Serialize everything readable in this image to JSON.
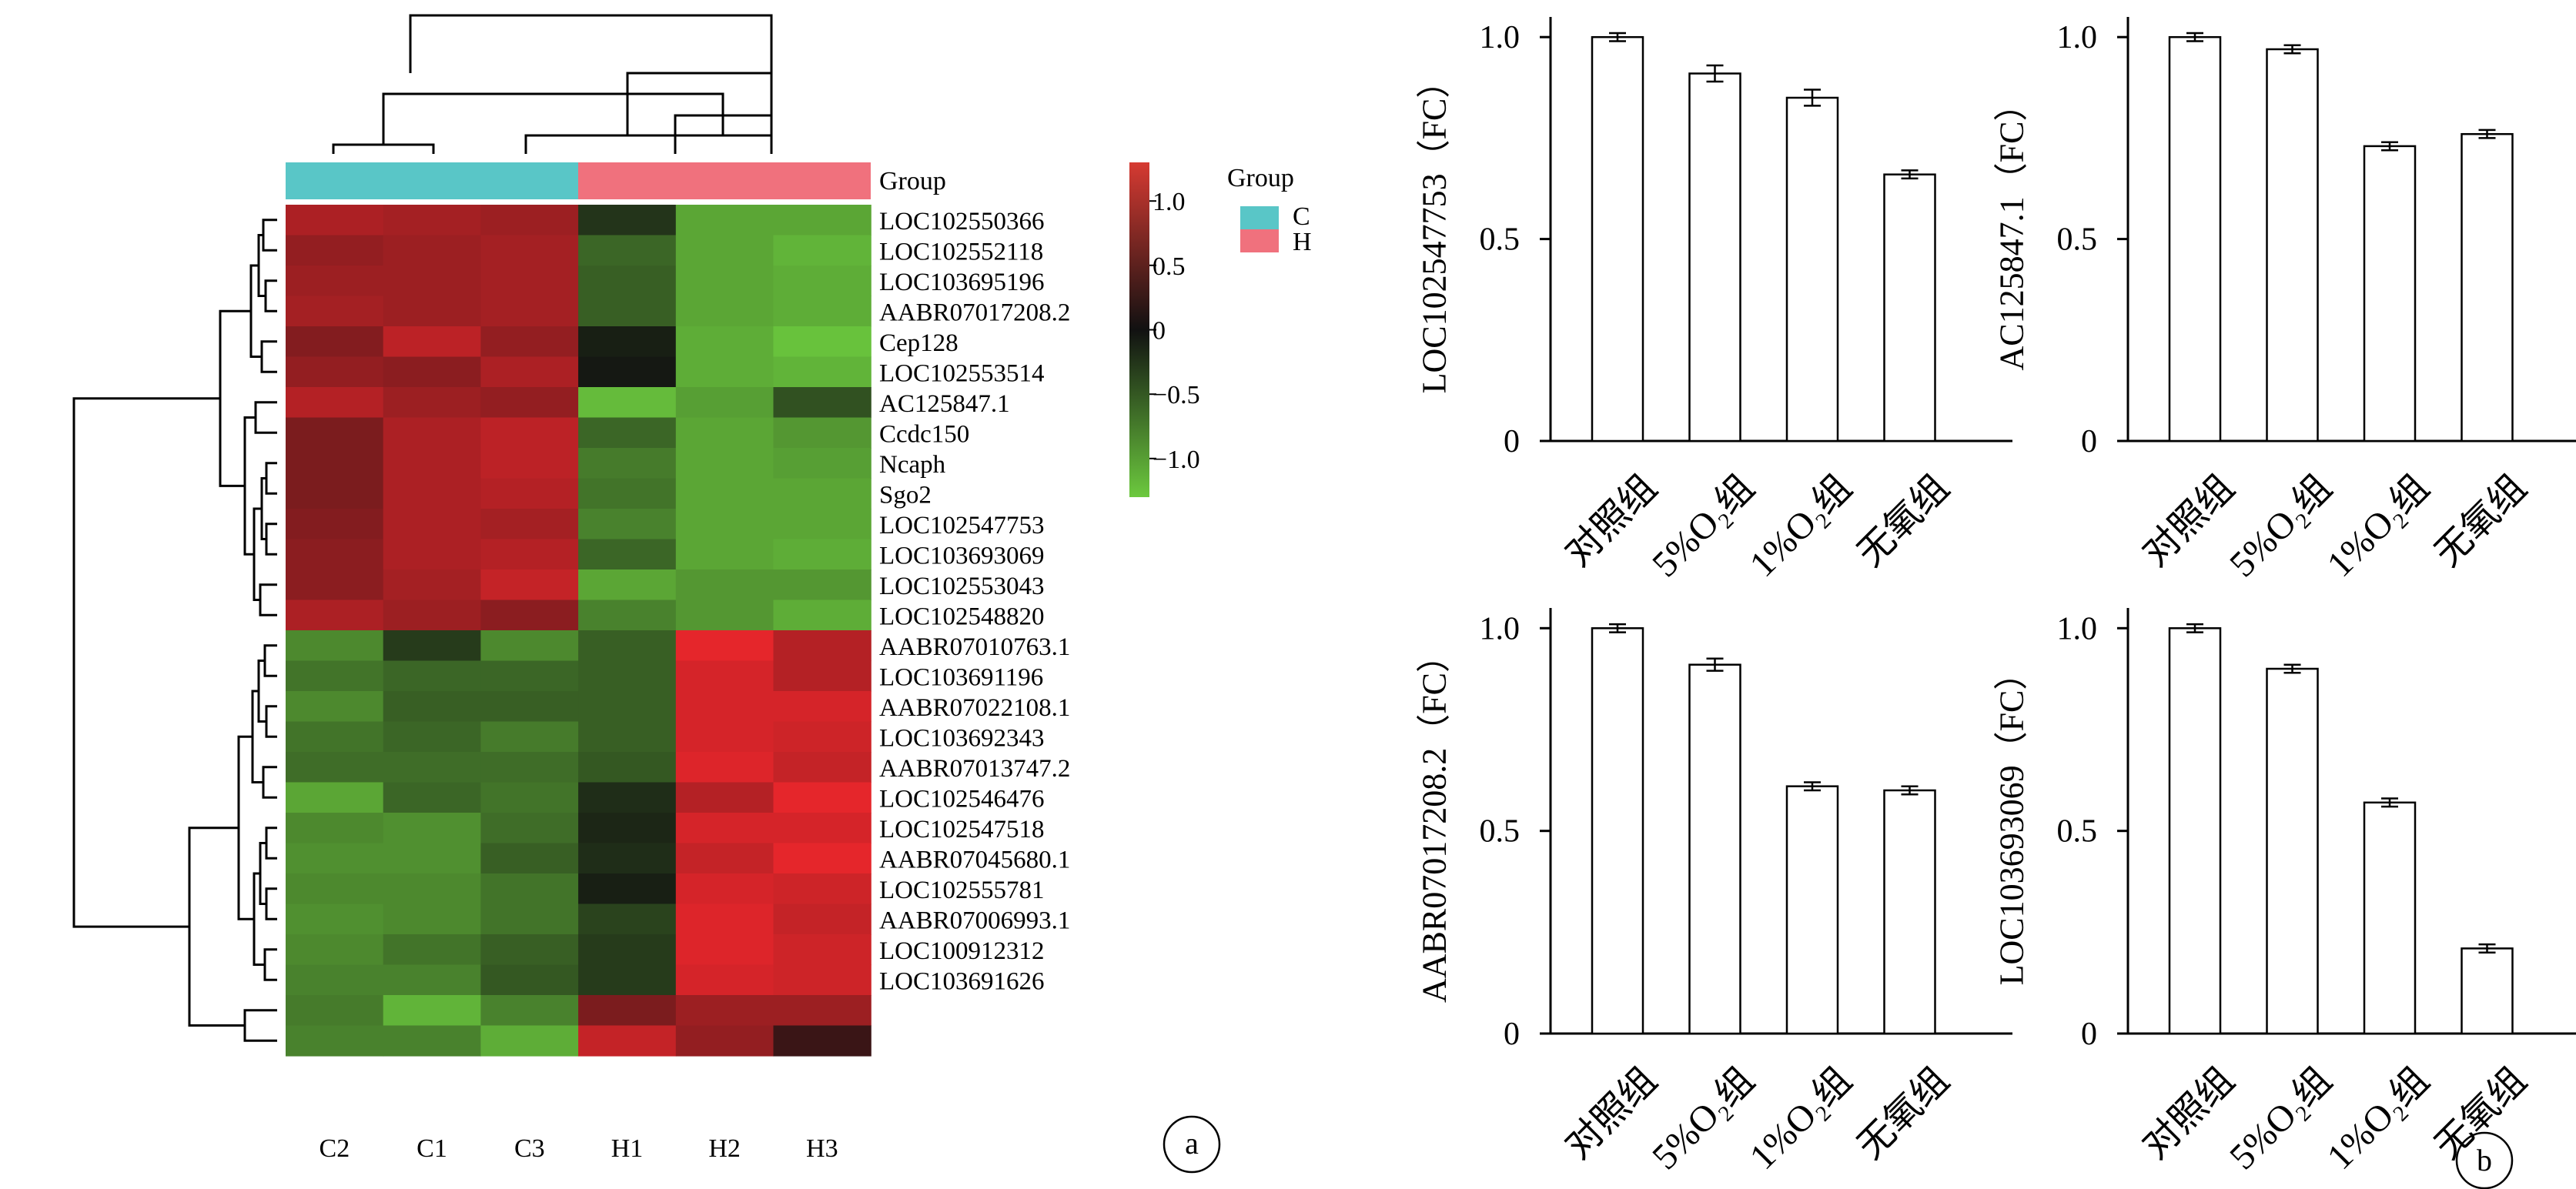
{
  "panel_labels": {
    "a": "a",
    "b": "b"
  },
  "colors": {
    "group_C": "#59C6C7",
    "group_H": "#F0717D",
    "low": "#6CC93E",
    "mid": "#111111",
    "high": "#E5262B",
    "bar_fill": "#ffffff",
    "ink": "#000000"
  },
  "chart_data": [
    {
      "type": "heatmap",
      "columns": [
        "C2",
        "C1",
        "C3",
        "H1",
        "H2",
        "H3"
      ],
      "rows": [
        "LOC102550366",
        "LOC102552118",
        "LOC103695196",
        "AABR07017208.2",
        "Cep128",
        "LOC102553514",
        "AC125847.1",
        "Ccdc150",
        "Ncaph",
        "Sgo2",
        "LOC102547753",
        "LOC103693069",
        "LOC102553043",
        "LOC102548820",
        "AABR07010763.1",
        "LOC103691196",
        "AABR07022108.1",
        "LOC103692343",
        "AABR07013747.2",
        "LOC102546476",
        "LOC102547518",
        "AABR07045680.1",
        "LOC102555781",
        "AABR07006993.1",
        "LOC100912312",
        "LOC103691626",
        "",
        ""
      ],
      "values": [
        [
          0.95,
          0.9,
          0.85,
          -0.25,
          -1.05,
          -1.05
        ],
        [
          0.8,
          0.85,
          0.9,
          -0.6,
          -1.05,
          -1.15
        ],
        [
          0.85,
          0.85,
          0.9,
          -0.55,
          -1.05,
          -1.1
        ],
        [
          0.9,
          0.85,
          0.9,
          -0.55,
          -1.05,
          -1.1
        ],
        [
          0.7,
          1.05,
          0.8,
          -0.1,
          -1.1,
          -1.25
        ],
        [
          0.8,
          0.75,
          0.95,
          -0.05,
          -1.1,
          -1.15
        ],
        [
          1.0,
          0.85,
          0.8,
          -1.2,
          -1.0,
          -0.45
        ],
        [
          0.65,
          0.95,
          1.05,
          -0.6,
          -1.05,
          -0.95
        ],
        [
          0.65,
          0.95,
          1.05,
          -0.75,
          -1.05,
          -1.0
        ],
        [
          0.65,
          0.95,
          1.0,
          -0.7,
          -1.05,
          -1.05
        ],
        [
          0.7,
          0.95,
          0.9,
          -0.8,
          -1.05,
          -1.05
        ],
        [
          0.75,
          0.95,
          1.0,
          -0.6,
          -1.05,
          -1.1
        ],
        [
          0.75,
          0.9,
          1.1,
          -1.05,
          -0.95,
          -0.95
        ],
        [
          0.95,
          0.85,
          0.75,
          -0.8,
          -0.95,
          -1.1
        ],
        [
          -0.85,
          -0.3,
          -0.85,
          -0.55,
          1.3,
          1.0
        ],
        [
          -0.7,
          -0.6,
          -0.6,
          -0.55,
          1.2,
          1.0
        ],
        [
          -0.85,
          -0.55,
          -0.55,
          -0.55,
          1.2,
          1.2
        ],
        [
          -0.7,
          -0.6,
          -0.75,
          -0.55,
          1.2,
          1.15
        ],
        [
          -0.65,
          -0.65,
          -0.65,
          -0.5,
          1.25,
          1.1
        ],
        [
          -1.05,
          -0.6,
          -0.7,
          -0.2,
          1.0,
          1.3
        ],
        [
          -0.85,
          -0.9,
          -0.65,
          -0.15,
          1.2,
          1.2
        ],
        [
          -0.9,
          -0.9,
          -0.55,
          -0.2,
          1.1,
          1.3
        ],
        [
          -0.85,
          -0.85,
          -0.7,
          -0.1,
          1.2,
          1.15
        ],
        [
          -0.9,
          -0.85,
          -0.7,
          -0.35,
          1.25,
          1.1
        ],
        [
          -0.85,
          -0.7,
          -0.55,
          -0.3,
          1.25,
          1.15
        ],
        [
          -0.8,
          -0.8,
          -0.5,
          -0.3,
          1.2,
          1.15
        ],
        [
          -0.75,
          -1.15,
          -0.8,
          0.65,
          0.85,
          0.85
        ],
        [
          -0.8,
          -0.8,
          -1.1,
          1.1,
          0.8,
          0.25
        ]
      ],
      "color_scale": {
        "ticks": [
          "1.0",
          "0.5",
          "0",
          "−0.5",
          "−1.0"
        ],
        "tick_values": [
          1.0,
          0.5,
          0,
          -0.5,
          -1.0
        ],
        "range": [
          -1.3,
          1.3
        ]
      },
      "group_bar_label": "Group",
      "group_assignment": [
        "C",
        "C",
        "C",
        "H",
        "H",
        "H"
      ],
      "legend": {
        "title": "Group",
        "entries": [
          {
            "label": "C",
            "color": "#59C6C7"
          },
          {
            "label": "H",
            "color": "#F0717D"
          }
        ]
      }
    },
    {
      "type": "bar",
      "ylabel": "LOC102547753（FC）",
      "categories": [
        "对照组",
        "5%O₂组",
        "1%O₂组",
        "无氧组"
      ],
      "values": [
        1.0,
        0.91,
        0.85,
        0.66
      ],
      "errors": [
        0.01,
        0.02,
        0.02,
        0.01
      ],
      "ylim": [
        0,
        1.05
      ],
      "yticks": [
        "0",
        "0.5",
        "1.0"
      ],
      "ytick_values": [
        0,
        0.5,
        1.0
      ]
    },
    {
      "type": "bar",
      "ylabel": "AC125847.1（FC）",
      "categories": [
        "对照组",
        "5%O₂组",
        "1%O₂组",
        "无氧组"
      ],
      "values": [
        1.0,
        0.97,
        0.73,
        0.76
      ],
      "errors": [
        0.01,
        0.01,
        0.01,
        0.01
      ],
      "ylim": [
        0,
        1.05
      ],
      "yticks": [
        "0",
        "0.5",
        "1.0"
      ],
      "ytick_values": [
        0,
        0.5,
        1.0
      ]
    },
    {
      "type": "bar",
      "ylabel": "AABR07017208.2（FC）",
      "categories": [
        "对照组",
        "5%O₂组",
        "1%O₂组",
        "无氧组"
      ],
      "values": [
        1.0,
        0.91,
        0.61,
        0.6
      ],
      "errors": [
        0.01,
        0.015,
        0.01,
        0.01
      ],
      "ylim": [
        0,
        1.05
      ],
      "yticks": [
        "0",
        "0.5",
        "1.0"
      ],
      "ytick_values": [
        0,
        0.5,
        1.0
      ]
    },
    {
      "type": "bar",
      "ylabel": "LOC103693069（FC）",
      "categories": [
        "对照组",
        "5%O₂组",
        "1%O₂组",
        "无氧组"
      ],
      "values": [
        1.0,
        0.9,
        0.57,
        0.21
      ],
      "errors": [
        0.01,
        0.01,
        0.01,
        0.01
      ],
      "ylim": [
        0,
        1.05
      ],
      "yticks": [
        "0",
        "0.5",
        "1.0"
      ],
      "ytick_values": [
        0,
        0.5,
        1.0
      ]
    }
  ]
}
